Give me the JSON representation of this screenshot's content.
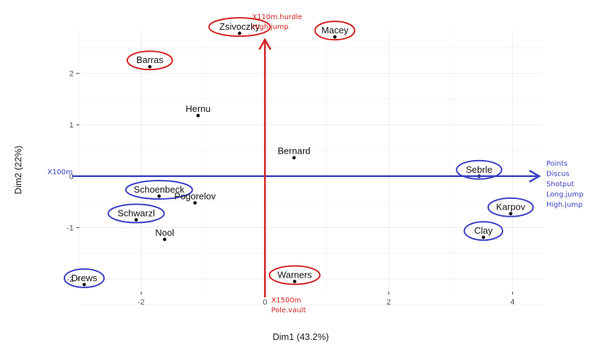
{
  "chart_data": {
    "type": "scatter",
    "xlabel": "Dim1 (43.2%)",
    "ylabel": "Dim2 (22%)",
    "xlim": [
      -3.0,
      4.5
    ],
    "ylim": [
      -2.25,
      2.85
    ],
    "x_ticks": [
      -2,
      0,
      2,
      4
    ],
    "y_ticks": [
      -2,
      -1,
      0,
      1,
      2
    ],
    "x_tick_labels": [
      "-2",
      "0",
      "2",
      "4"
    ],
    "y_tick_labels": [
      "-2",
      "-1",
      "0",
      "1",
      "2"
    ],
    "grid": true,
    "points": [
      {
        "label": "Zsivoczky",
        "x": -0.41,
        "y": 2.78,
        "circle": "red"
      },
      {
        "label": "Macey",
        "x": 1.13,
        "y": 2.71,
        "circle": "red"
      },
      {
        "label": "Barras",
        "x": -1.86,
        "y": 2.13,
        "circle": "red"
      },
      {
        "label": "Hernu",
        "x": -1.08,
        "y": 1.18,
        "circle": "none"
      },
      {
        "label": "Bernard",
        "x": 0.47,
        "y": 0.36,
        "circle": "none"
      },
      {
        "label": "Sebrle",
        "x": 3.46,
        "y": 0.0,
        "circle": "blue"
      },
      {
        "label": "Schoenbeck",
        "x": -1.71,
        "y": -0.39,
        "circle": "blue"
      },
      {
        "label": "Pogorelov",
        "x": -1.13,
        "y": -0.52,
        "circle": "none"
      },
      {
        "label": "Schwarzl",
        "x": -2.08,
        "y": -0.85,
        "circle": "blue"
      },
      {
        "label": "Karpov",
        "x": 3.97,
        "y": -0.73,
        "circle": "blue"
      },
      {
        "label": "Nool",
        "x": -1.62,
        "y": -1.23,
        "circle": "none"
      },
      {
        "label": "Clay",
        "x": 3.53,
        "y": -1.19,
        "circle": "blue"
      },
      {
        "label": "Warners",
        "x": 0.48,
        "y": -2.05,
        "circle": "red"
      },
      {
        "label": "Drews",
        "x": -2.92,
        "y": -2.11,
        "circle": "blue"
      }
    ],
    "annotations": {
      "top": [
        "X110m.hurdle",
        "High.jump"
      ],
      "bottom": [
        "X1500m",
        "Pole.vault"
      ],
      "left": [
        "X100m"
      ],
      "right": [
        "Points",
        "Discus",
        "Shotput",
        "Long.jump",
        "High.jump"
      ]
    },
    "colors": {
      "red": "#d42020",
      "blue": "#3a3fc4",
      "point": "#000000",
      "grid": "#ebebeb"
    }
  }
}
